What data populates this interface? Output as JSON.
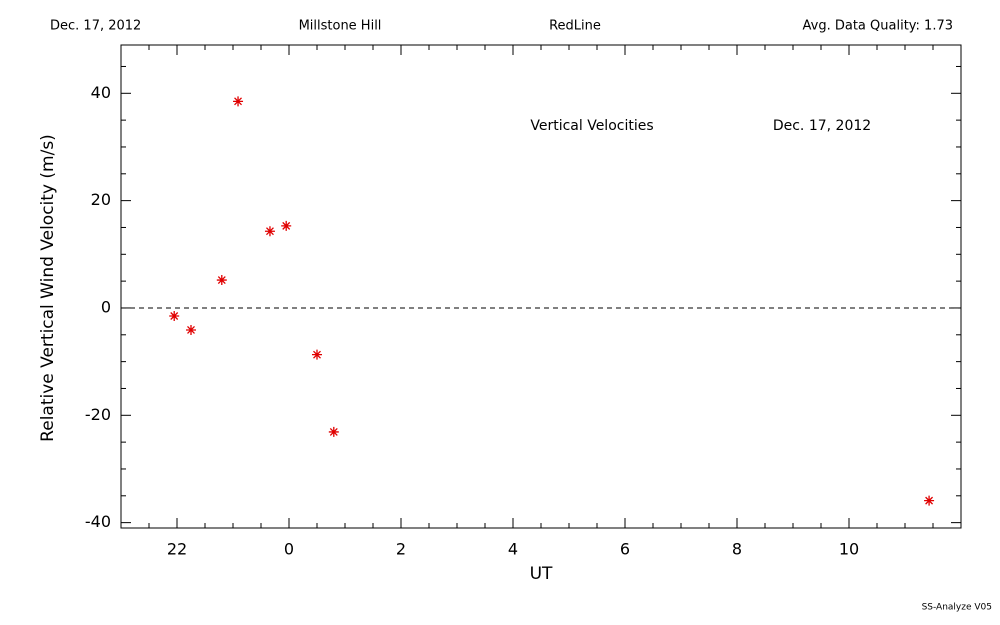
{
  "header": {
    "date": "Dec. 17, 2012",
    "site": "Millstone Hill",
    "line": "RedLine",
    "quality": "Avg. Data Quality: 1.73"
  },
  "footer": "SS-Analyze V05",
  "chart_data": {
    "type": "scatter",
    "annotations": [
      "Vertical Velocities",
      "Dec. 17, 2012"
    ],
    "xlabel": "UT",
    "ylabel": "Relative Vertical Wind Velocity (m/s)",
    "color": "#e00000",
    "x": [
      -2.05,
      -1.75,
      -1.2,
      -0.91,
      -0.34,
      -0.05,
      0.5,
      0.8,
      11.43
    ],
    "values": [
      -1.5,
      -4.1,
      5.2,
      38.5,
      14.3,
      15.3,
      -8.7,
      -23.1,
      -35.9
    ],
    "xlim": [
      -3,
      12
    ],
    "xticks": [
      {
        "value": -2,
        "label": "22"
      },
      0,
      2,
      4,
      6,
      8,
      10
    ],
    "ylim": [
      -41,
      49
    ],
    "yticks": [
      -40,
      -20,
      0,
      20,
      40
    ],
    "hline": 0
  }
}
